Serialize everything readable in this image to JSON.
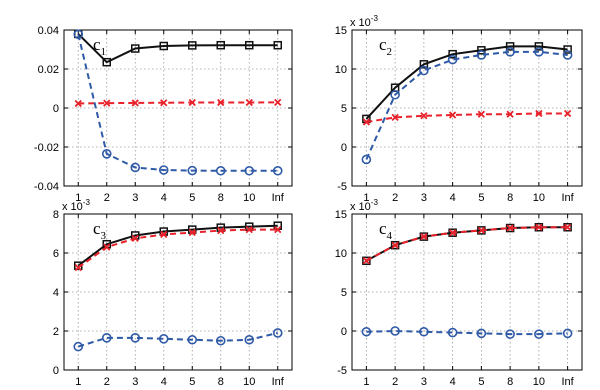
{
  "colors": {
    "black": "#111111",
    "red": "#e8212a",
    "blue": "#2f5aa6",
    "grid": "#9a9a9a"
  },
  "chart_data": [
    {
      "type": "line",
      "title_main": "c",
      "title_sub": "1",
      "exponent_label": "",
      "categories": [
        "1",
        "2",
        "3",
        "4",
        "5",
        "8",
        "10",
        "Inf"
      ],
      "ylim": [
        -0.04,
        0.04
      ],
      "yticks": [
        -0.04,
        -0.02,
        0,
        0.02,
        0.04
      ],
      "ytick_labels": [
        "-0.04",
        "-0.02",
        "0",
        "0.02",
        "0.04"
      ],
      "grid": true,
      "series": [
        {
          "marker": "square",
          "style": "solid",
          "color": "#111111",
          "values": [
            0.038,
            0.0235,
            0.0305,
            0.0318,
            0.0321,
            0.0322,
            0.0322,
            0.0322
          ]
        },
        {
          "marker": "x",
          "style": "dashed",
          "color": "#e8212a",
          "values": [
            0.0023,
            0.0025,
            0.0026,
            0.0027,
            0.0028,
            0.0028,
            0.0028,
            0.0029
          ]
        },
        {
          "marker": "circle",
          "style": "dashed",
          "color": "#2f5aa6",
          "values": [
            0.0378,
            -0.0235,
            -0.0305,
            -0.0318,
            -0.0321,
            -0.0322,
            -0.0322,
            -0.0322
          ]
        }
      ]
    },
    {
      "type": "line",
      "title_main": "c",
      "title_sub": "2",
      "exponent_label": "x 10",
      "exponent_power": "-3",
      "categories": [
        "1",
        "2",
        "3",
        "4",
        "5",
        "8",
        "10",
        "Inf"
      ],
      "ylim": [
        -5,
        15
      ],
      "yticks": [
        -5,
        0,
        5,
        10,
        15
      ],
      "ytick_labels": [
        "-5",
        "0",
        "5",
        "10",
        "15"
      ],
      "grid": true,
      "series": [
        {
          "marker": "square",
          "style": "solid",
          "color": "#111111",
          "values": [
            3.6,
            7.6,
            10.6,
            11.9,
            12.4,
            12.9,
            12.9,
            12.5
          ]
        },
        {
          "marker": "x",
          "style": "dashed",
          "color": "#e8212a",
          "values": [
            3.2,
            3.8,
            4.0,
            4.1,
            4.2,
            4.2,
            4.3,
            4.3
          ]
        },
        {
          "marker": "circle",
          "style": "dashed",
          "color": "#2f5aa6",
          "values": [
            -1.6,
            6.7,
            9.8,
            11.2,
            11.8,
            12.2,
            12.2,
            11.8
          ]
        }
      ]
    },
    {
      "type": "line",
      "title_main": "c",
      "title_sub": "3",
      "exponent_label": "x 10",
      "exponent_power": "-3",
      "categories": [
        "1",
        "2",
        "3",
        "4",
        "5",
        "8",
        "10",
        "Inf"
      ],
      "ylim": [
        0,
        8
      ],
      "yticks": [
        0,
        2,
        4,
        6,
        8
      ],
      "ytick_labels": [
        "0",
        "2",
        "4",
        "6",
        "8"
      ],
      "grid": true,
      "series": [
        {
          "marker": "square",
          "style": "solid",
          "color": "#111111",
          "values": [
            5.35,
            6.45,
            6.9,
            7.1,
            7.2,
            7.3,
            7.35,
            7.4
          ]
        },
        {
          "marker": "x",
          "style": "dashed",
          "color": "#e8212a",
          "values": [
            5.25,
            6.3,
            6.75,
            6.95,
            7.05,
            7.15,
            7.2,
            7.2
          ]
        },
        {
          "marker": "circle",
          "style": "dashed",
          "color": "#2f5aa6",
          "values": [
            1.2,
            1.65,
            1.65,
            1.6,
            1.55,
            1.5,
            1.55,
            1.9
          ]
        }
      ]
    },
    {
      "type": "line",
      "title_main": "c",
      "title_sub": "4",
      "exponent_label": "x 10",
      "exponent_power": "-3",
      "categories": [
        "1",
        "2",
        "3",
        "4",
        "5",
        "8",
        "10",
        "Inf"
      ],
      "ylim": [
        -5,
        15
      ],
      "yticks": [
        -5,
        0,
        5,
        10,
        15
      ],
      "ytick_labels": [
        "-5",
        "0",
        "5",
        "10",
        "15"
      ],
      "grid": true,
      "series": [
        {
          "marker": "square",
          "style": "solid",
          "color": "#111111",
          "values": [
            9.0,
            11.0,
            12.1,
            12.6,
            12.9,
            13.2,
            13.3,
            13.3
          ]
        },
        {
          "marker": "x",
          "style": "dashed",
          "color": "#e8212a",
          "values": [
            9.0,
            11.0,
            12.1,
            12.6,
            12.9,
            13.2,
            13.3,
            13.3
          ]
        },
        {
          "marker": "circle",
          "style": "dashed",
          "color": "#2f5aa6",
          "values": [
            -0.1,
            0.0,
            -0.1,
            -0.2,
            -0.3,
            -0.4,
            -0.4,
            -0.3
          ]
        }
      ]
    }
  ]
}
